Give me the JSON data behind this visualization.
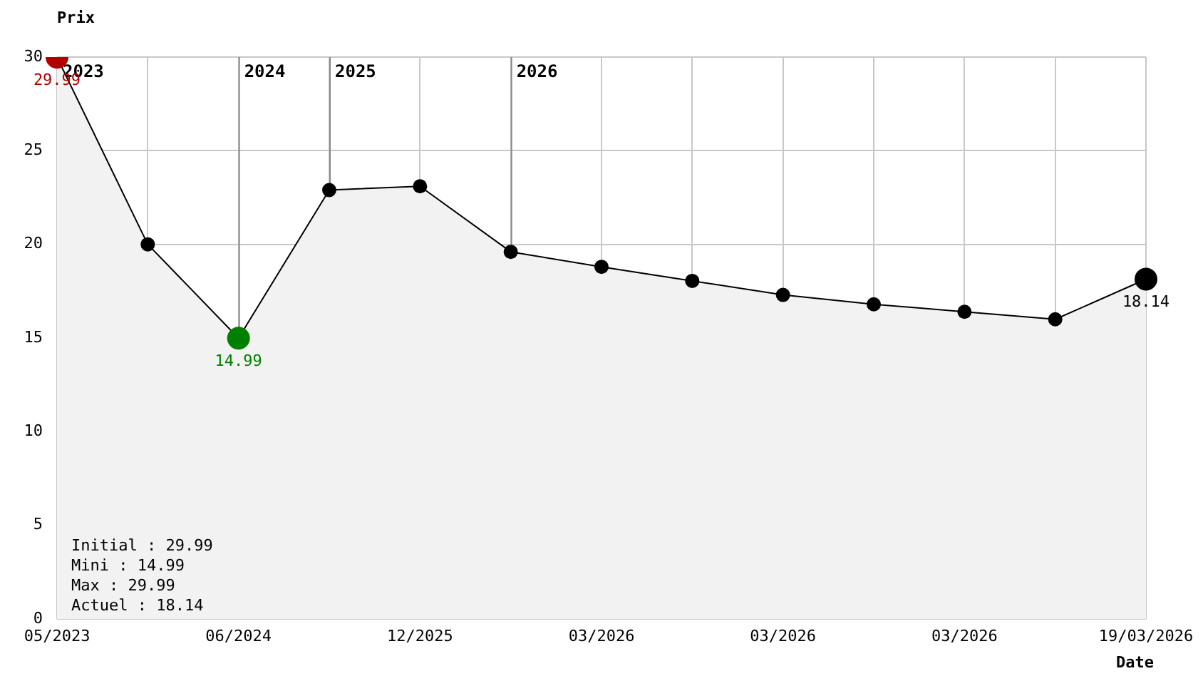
{
  "chart_data": {
    "type": "area",
    "ylabel": "Prix",
    "xlabel": "Date",
    "categories": [
      "05/2023",
      null,
      "06/2024",
      null,
      "12/2025",
      null,
      "03/2026",
      null,
      "03/2026",
      null,
      "03/2026",
      null,
      "19/03/2026"
    ],
    "series": [
      {
        "color": "#000000",
        "colors": [
          "#b00000",
          "#000000",
          "#008000",
          "#000000",
          "#000000",
          "#000000",
          "#000000",
          "#000000",
          "#000000",
          "#000000",
          "#000000",
          "#000000",
          "#000000"
        ],
        "values": [
          29.99,
          20,
          14.99,
          22.9,
          23.1,
          19.6,
          18.8,
          18.05,
          17.3,
          16.8,
          16.4,
          16.0,
          18.14
        ],
        "value_labels": [
          "29.99",
          null,
          "14.99",
          null,
          null,
          null,
          null,
          null,
          null,
          null,
          null,
          null,
          "18.14"
        ]
      }
    ],
    "ylim": [
      0,
      30
    ],
    "yticks": [
      0,
      5,
      10,
      15,
      20,
      25,
      30
    ],
    "grid": true,
    "legend": false,
    "marker": "circle",
    "annotations": [
      "2023",
      "2024",
      "2025",
      "2026",
      "Initial : 29.99",
      "Mini : 14.99",
      "Max : 29.99",
      "Actuel : 18.14"
    ]
  }
}
